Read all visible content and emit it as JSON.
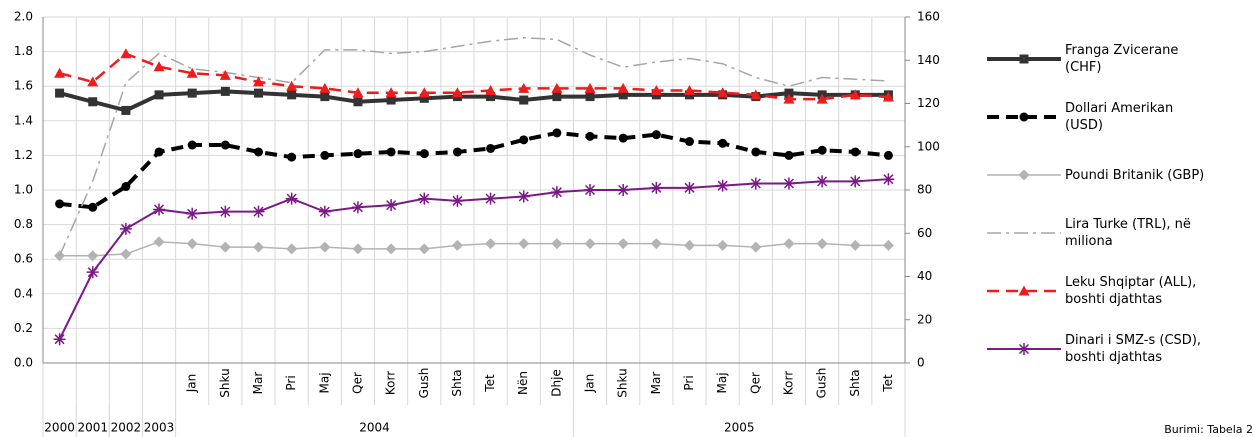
{
  "chart_data": {
    "type": "line",
    "categories": [
      null,
      null,
      null,
      null,
      "Jan",
      "Shku",
      "Mar",
      "Pri",
      "Maj",
      "Qer",
      "Korr",
      "Gush",
      "Shta",
      "Tet",
      "Nën",
      "Dhje",
      "Jan",
      "Shku",
      "Mar",
      "Pri",
      "Maj",
      "Qer",
      "Korr",
      "Gush",
      "Shta",
      "Tet"
    ],
    "groups": [
      {
        "label": "2000",
        "span": 1
      },
      {
        "label": "2001",
        "span": 1
      },
      {
        "label": "2002",
        "span": 1
      },
      {
        "label": "2003",
        "span": 1
      },
      {
        "label": "2004",
        "span": 12
      },
      {
        "label": "2005",
        "span": 10
      }
    ],
    "ylim": [
      0,
      2.0
    ],
    "yticks": [
      {
        "value": 0,
        "label": "0.0"
      },
      0.2,
      0.4,
      0.6,
      0.8,
      {
        "value": 1.0,
        "label": "1.0"
      },
      1.2,
      1.4,
      1.6,
      1.8,
      {
        "value": 2.0,
        "label": "2.0"
      }
    ],
    "y2lim": [
      0,
      160
    ],
    "y2ticks": [
      0,
      20,
      40,
      60,
      80,
      100,
      120,
      140,
      160
    ],
    "grid": true,
    "legend": "right",
    "note": "Burimi: Tabela 2",
    "series": [
      {
        "name": "Franga Zvicerane (CHF)",
        "color": "#333333",
        "marker": "square",
        "dash": "solid",
        "values": [
          1.56,
          1.51,
          1.46,
          1.55,
          1.56,
          1.57,
          1.56,
          1.55,
          1.54,
          1.51,
          1.52,
          1.53,
          1.54,
          1.54,
          1.52,
          1.54,
          1.54,
          1.55,
          1.55,
          1.55,
          1.55,
          1.54,
          1.56,
          1.55,
          1.55,
          1.55
        ]
      },
      {
        "name": "Dollari Amerikan (USD)",
        "color": "#000000",
        "marker": "circle",
        "dash": "dash",
        "values": [
          0.92,
          0.9,
          1.02,
          1.22,
          1.26,
          1.26,
          1.22,
          1.19,
          1.2,
          1.21,
          1.22,
          1.21,
          1.22,
          1.24,
          1.29,
          1.33,
          1.31,
          1.3,
          1.32,
          1.28,
          1.27,
          1.22,
          1.2,
          1.23,
          1.22,
          1.2
        ]
      },
      {
        "name": "Poundi Britanik (GBP)",
        "color": "#b3b3b3",
        "marker": "diamond",
        "dash": "solid",
        "values": [
          0.62,
          0.62,
          0.63,
          0.7,
          0.69,
          0.67,
          0.67,
          0.66,
          0.67,
          0.66,
          0.66,
          0.66,
          0.68,
          0.69,
          0.69,
          0.69,
          0.69,
          0.69,
          0.69,
          0.68,
          0.68,
          0.67,
          0.69,
          0.69,
          0.68,
          0.68
        ]
      },
      {
        "name": "Lira Turke (TRL), në miliona",
        "color": "#a6a6a6",
        "marker": "none",
        "dash": "dashdot",
        "values": [
          0.62,
          1.05,
          1.62,
          1.79,
          1.7,
          1.68,
          1.65,
          1.62,
          1.81,
          1.81,
          1.79,
          1.8,
          1.83,
          1.86,
          1.88,
          1.87,
          1.78,
          1.71,
          1.74,
          1.76,
          1.73,
          1.65,
          1.6,
          1.65,
          1.64,
          1.63
        ]
      },
      {
        "name": "Leku Shqiptar (ALL), boshti djathtas",
        "color": "#ee1c1c",
        "marker": "triangle",
        "dash": "dash",
        "axis": "y2",
        "values": [
          134,
          130,
          143,
          137,
          134,
          133,
          130,
          128,
          127,
          125,
          125,
          125,
          125,
          126,
          127,
          127,
          127,
          127,
          126,
          126,
          125,
          124,
          122,
          122,
          124,
          123
        ]
      },
      {
        "name": "Dinari i SMZ-s (CSD), boshti djathtas",
        "color": "#7b1a86",
        "marker": "star",
        "dash": "solid",
        "axis": "y2",
        "values": [
          11,
          42,
          62,
          71,
          69,
          70,
          70,
          76,
          70,
          72,
          73,
          76,
          75,
          76,
          77,
          79,
          80,
          80,
          81,
          81,
          82,
          83,
          83,
          84,
          84,
          85
        ]
      }
    ]
  }
}
